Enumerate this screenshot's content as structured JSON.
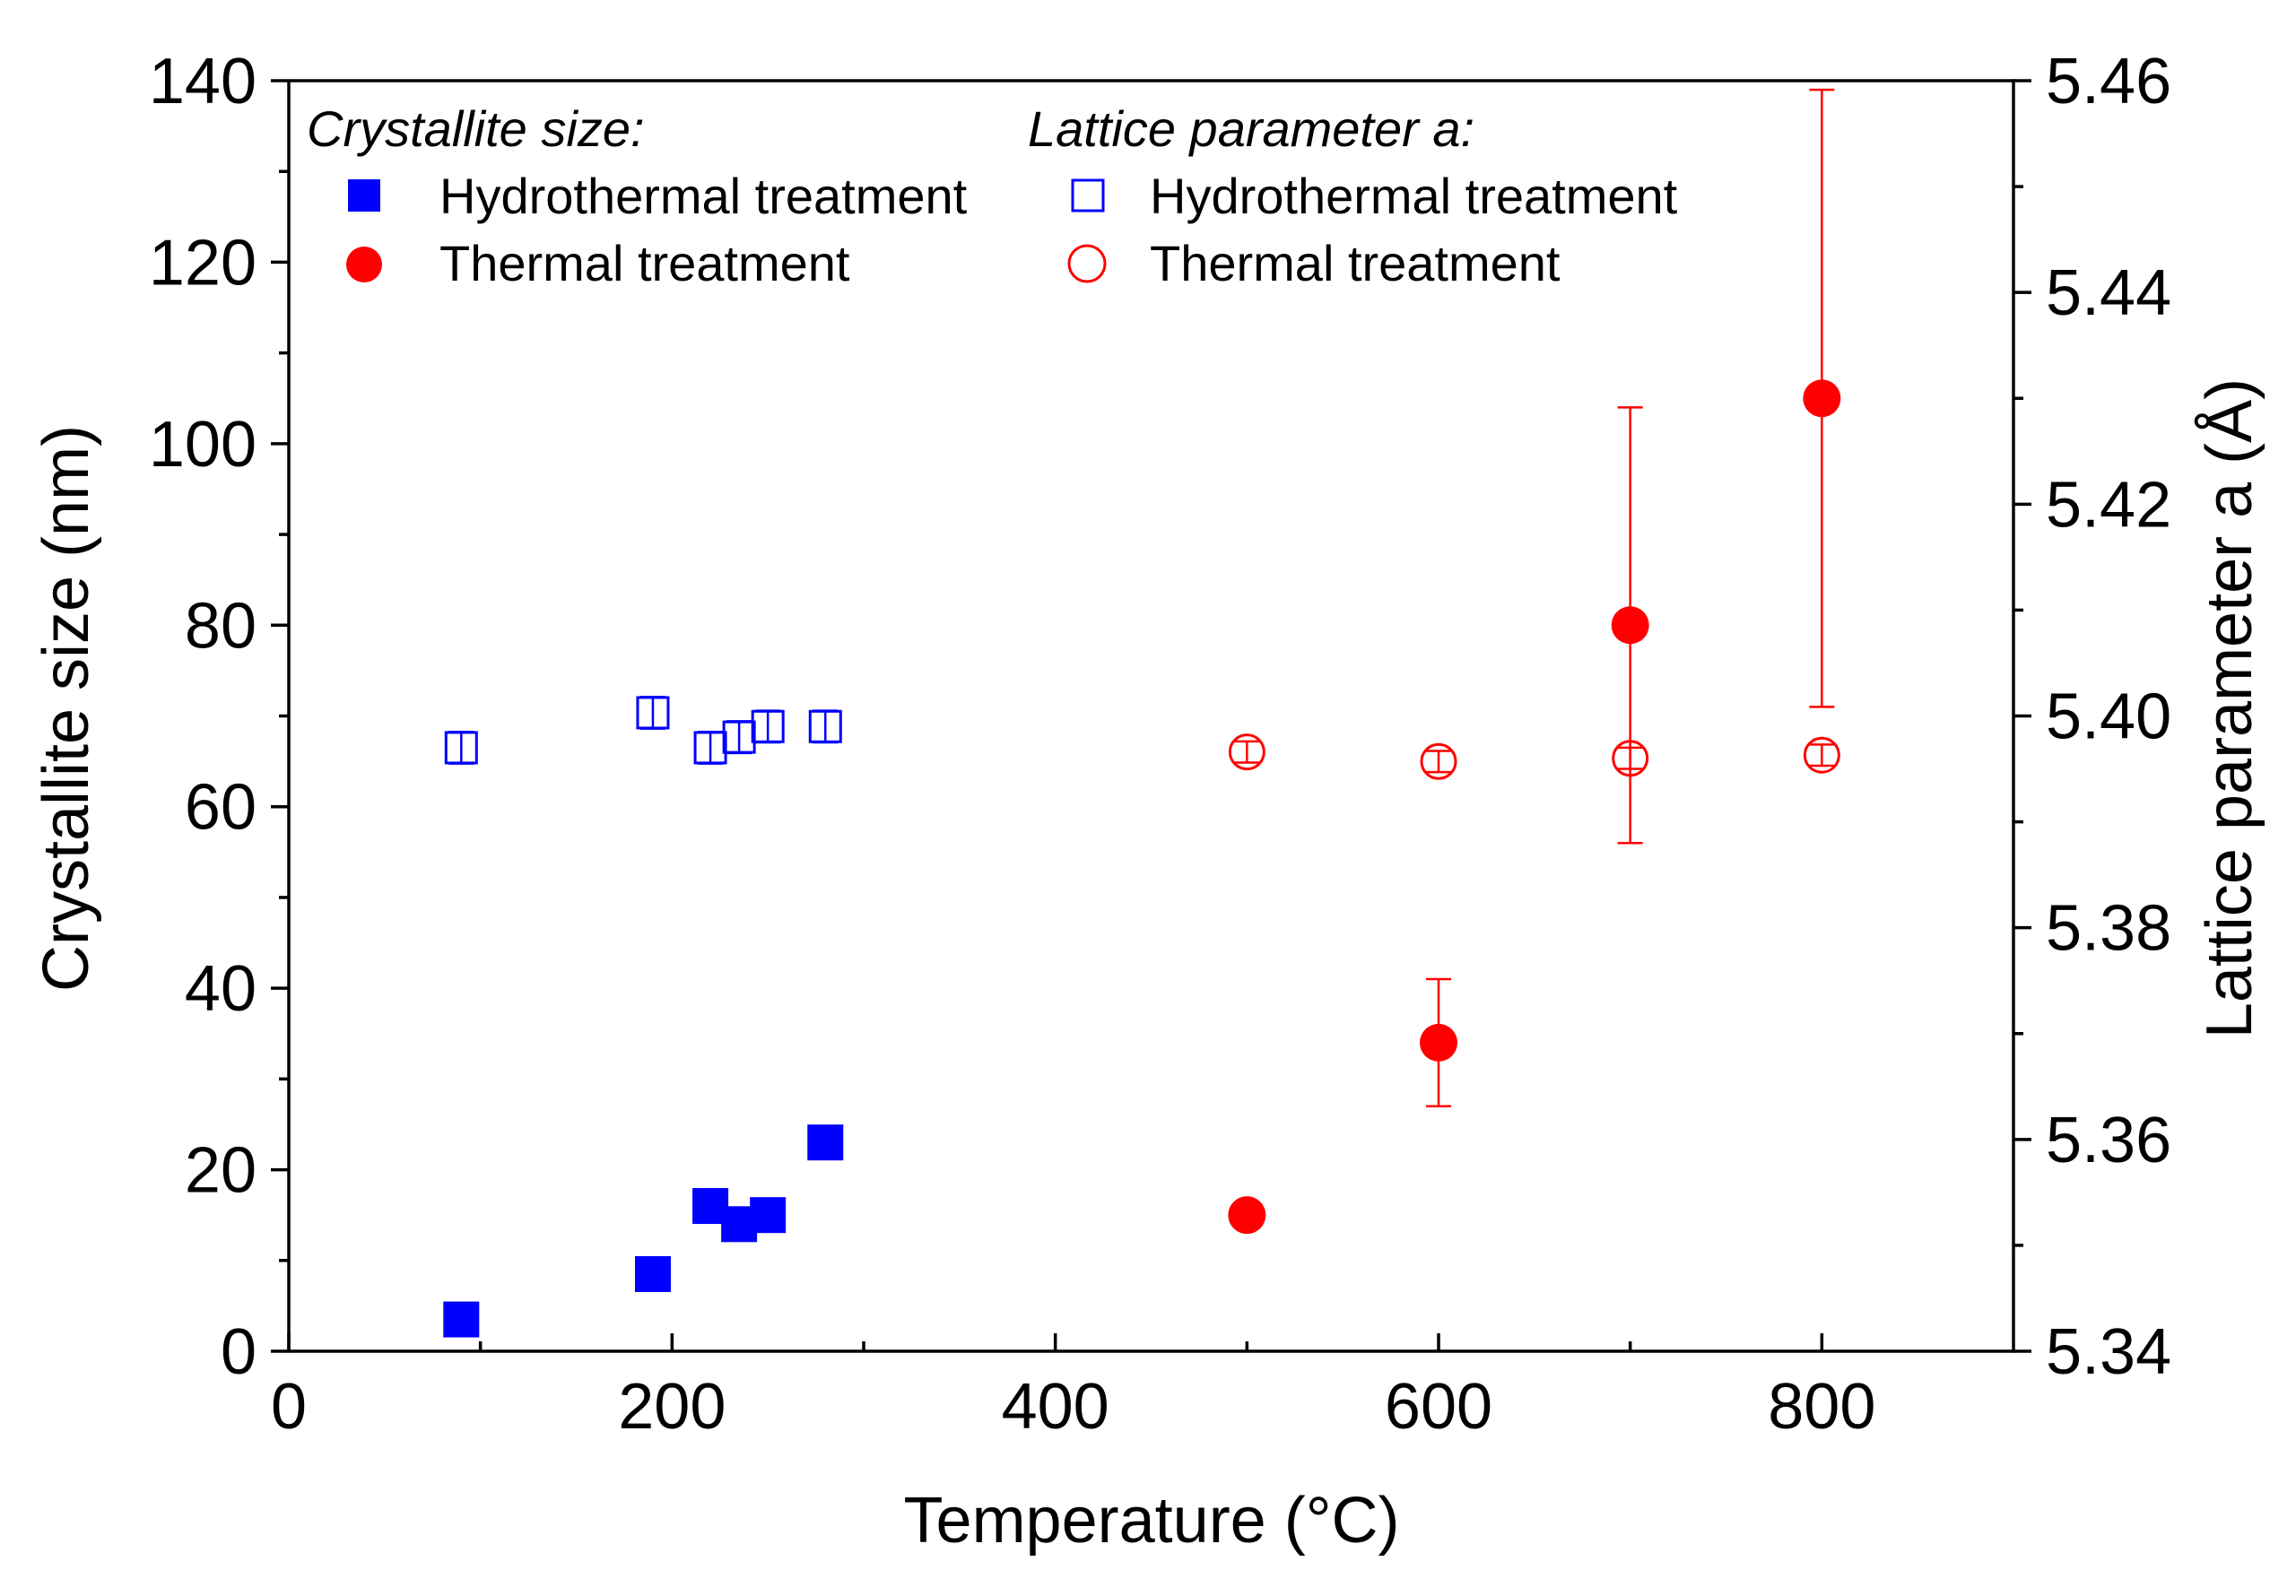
{
  "chart_data": {
    "type": "scatter",
    "xlabel": "Temperature (°C)",
    "ylabel": "Crystallite size (nm)",
    "y2label": "Lattice parameter a (Å)",
    "xlim": [
      0,
      900
    ],
    "ylim": [
      0,
      140
    ],
    "y2lim": [
      5.34,
      5.46
    ],
    "x_ticks": [
      0,
      200,
      400,
      600,
      800
    ],
    "y_ticks": [
      0,
      20,
      40,
      60,
      80,
      100,
      120,
      140
    ],
    "y2_ticks": [
      5.34,
      5.36,
      5.38,
      5.4,
      5.42,
      5.44,
      5.46
    ],
    "x_tick_labels": [
      "0",
      "200",
      "400",
      "600",
      "800"
    ],
    "y_tick_labels": [
      "0",
      "20",
      "40",
      "60",
      "80",
      "100",
      "120",
      "140"
    ],
    "y2_tick_labels": [
      "5.34",
      "5.36",
      "5.38",
      "5.40",
      "5.42",
      "5.44",
      "5.46"
    ],
    "legend": {
      "crystallite_heading": "Crystallite size:",
      "lattice_heading": "Lattice parameter a:",
      "hydrothermal_label": "Hydrothermal treatment",
      "thermal_label": "Thermal treatment"
    },
    "series": [
      {
        "name": "Crystallite size – Hydrothermal treatment",
        "axis": "left",
        "marker": "square",
        "filled": true,
        "color": "#0000ff",
        "x": [
          90,
          190,
          220,
          235,
          250,
          280
        ],
        "y": [
          3.5,
          8.5,
          16,
          14,
          15,
          23
        ]
      },
      {
        "name": "Crystallite size – Thermal treatment",
        "axis": "left",
        "marker": "circle",
        "filled": true,
        "color": "#ff0000",
        "x": [
          500,
          600,
          700,
          800
        ],
        "y": [
          15,
          34,
          80,
          105
        ],
        "yerr": [
          0.5,
          7,
          24,
          34
        ]
      },
      {
        "name": "Lattice parameter a – Hydrothermal treatment",
        "axis": "right",
        "marker": "square",
        "filled": false,
        "color": "#0000ff",
        "x": [
          90,
          190,
          220,
          235,
          250,
          280
        ],
        "y": [
          5.397,
          5.4003,
          5.397,
          5.398,
          5.399,
          5.399
        ],
        "yerr": [
          0.0015,
          0.0015,
          0.0015,
          0.0015,
          0.0015,
          0.0015
        ]
      },
      {
        "name": "Lattice parameter a – Thermal treatment",
        "axis": "right",
        "marker": "circle",
        "filled": false,
        "color": "#ff0000",
        "x": [
          500,
          600,
          700,
          800
        ],
        "y": [
          5.3966,
          5.3957,
          5.396,
          5.3963
        ],
        "yerr": [
          0.001,
          0.001,
          0.001,
          0.001
        ]
      }
    ]
  }
}
